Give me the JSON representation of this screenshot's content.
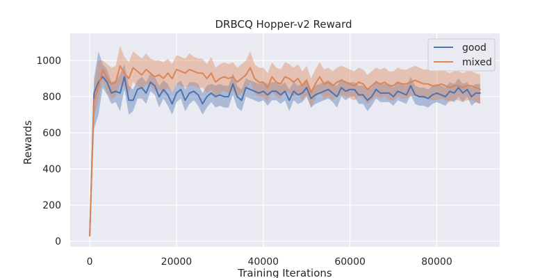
{
  "chart_data": {
    "type": "line",
    "title": "DRBCQ Hopper-v2 Reward",
    "xlabel": "Training Iterations",
    "ylabel": "Rewards",
    "xlim": [
      -4500,
      94500
    ],
    "ylim": [
      -30,
      1150
    ],
    "xticks": [
      0,
      20000,
      40000,
      60000,
      80000
    ],
    "yticks": [
      0,
      200,
      400,
      600,
      800,
      1000
    ],
    "grid": true,
    "legend_position": "top-right",
    "x": [
      0,
      1000,
      2000,
      3000,
      4000,
      5000,
      6000,
      7000,
      8000,
      9000,
      10000,
      11000,
      12000,
      13000,
      14000,
      15000,
      16000,
      17000,
      18000,
      19000,
      20000,
      21000,
      22000,
      23000,
      24000,
      25000,
      26000,
      27000,
      28000,
      29000,
      30000,
      31000,
      32000,
      33000,
      34000,
      35000,
      36000,
      37000,
      38000,
      39000,
      40000,
      41000,
      42000,
      43000,
      44000,
      45000,
      46000,
      47000,
      48000,
      49000,
      50000,
      51000,
      52000,
      53000,
      54000,
      55000,
      56000,
      57000,
      58000,
      59000,
      60000,
      61000,
      62000,
      63000,
      64000,
      65000,
      66000,
      67000,
      68000,
      69000,
      70000,
      71000,
      72000,
      73000,
      74000,
      75000,
      76000,
      77000,
      78000,
      79000,
      80000,
      81000,
      82000,
      83000,
      84000,
      85000,
      86000,
      87000,
      88000,
      89000,
      90000
    ],
    "series": [
      {
        "name": "good",
        "color": "#4c72b0",
        "values": [
          30,
          820,
          880,
          910,
          880,
          820,
          830,
          820,
          910,
          780,
          780,
          840,
          850,
          820,
          880,
          860,
          800,
          840,
          810,
          760,
          820,
          840,
          780,
          820,
          830,
          810,
          760,
          800,
          820,
          800,
          810,
          800,
          800,
          870,
          800,
          780,
          850,
          840,
          830,
          820,
          830,
          810,
          830,
          830,
          810,
          830,
          780,
          830,
          810,
          820,
          850,
          790,
          810,
          820,
          830,
          840,
          820,
          800,
          850,
          830,
          840,
          840,
          810,
          810,
          780,
          800,
          840,
          820,
          820,
          820,
          800,
          830,
          820,
          810,
          860,
          810,
          800,
          800,
          790,
          810,
          820,
          810,
          800,
          830,
          820,
          850,
          820,
          840,
          800,
          820,
          820
        ],
        "upper": [
          40,
          900,
          1050,
          980,
          950,
          880,
          890,
          920,
          980,
          860,
          840,
          890,
          910,
          880,
          930,
          910,
          860,
          890,
          870,
          820,
          870,
          890,
          840,
          880,
          880,
          870,
          820,
          860,
          870,
          860,
          870,
          860,
          860,
          930,
          860,
          840,
          900,
          890,
          880,
          870,
          880,
          870,
          880,
          880,
          860,
          880,
          840,
          880,
          860,
          870,
          900,
          840,
          860,
          870,
          880,
          890,
          870,
          860,
          900,
          880,
          880,
          880,
          860,
          860,
          840,
          850,
          890,
          870,
          870,
          870,
          850,
          880,
          870,
          860,
          910,
          860,
          850,
          850,
          840,
          860,
          870,
          860,
          850,
          880,
          870,
          900,
          870,
          880,
          850,
          870,
          870
        ],
        "lower": [
          20,
          620,
          700,
          850,
          810,
          760,
          770,
          720,
          840,
          700,
          720,
          790,
          790,
          760,
          830,
          810,
          740,
          790,
          750,
          700,
          770,
          790,
          720,
          760,
          780,
          750,
          700,
          740,
          770,
          740,
          750,
          740,
          740,
          810,
          740,
          720,
          800,
          790,
          780,
          770,
          780,
          750,
          780,
          780,
          760,
          780,
          720,
          780,
          760,
          770,
          800,
          740,
          760,
          770,
          780,
          790,
          770,
          740,
          800,
          780,
          800,
          800,
          760,
          760,
          720,
          750,
          790,
          770,
          770,
          770,
          750,
          780,
          770,
          760,
          810,
          760,
          750,
          750,
          740,
          760,
          770,
          760,
          750,
          780,
          770,
          800,
          770,
          800,
          750,
          770,
          760
        ]
      },
      {
        "name": "mixed",
        "color": "#dd8452",
        "values": [
          30,
          780,
          850,
          950,
          900,
          870,
          880,
          970,
          930,
          900,
          960,
          940,
          920,
          950,
          930,
          910,
          920,
          900,
          930,
          900,
          950,
          940,
          930,
          950,
          940,
          930,
          930,
          900,
          930,
          880,
          900,
          910,
          900,
          910,
          880,
          900,
          920,
          960,
          900,
          880,
          880,
          850,
          910,
          880,
          870,
          910,
          900,
          880,
          900,
          860,
          890,
          820,
          870,
          910,
          870,
          880,
          860,
          880,
          890,
          880,
          870,
          860,
          880,
          870,
          840,
          860,
          880,
          870,
          880,
          860,
          860,
          880,
          870,
          870,
          880,
          890,
          880,
          870,
          870,
          860,
          860,
          870,
          860,
          850,
          860,
          860,
          850,
          860,
          860,
          850,
          840
        ],
        "upper": [
          40,
          870,
          1000,
          1000,
          980,
          960,
          970,
          1080,
          1020,
          990,
          1050,
          1030,
          1010,
          1040,
          1010,
          1000,
          1000,
          990,
          1010,
          980,
          1030,
          1020,
          1010,
          1040,
          1020,
          1010,
          1010,
          980,
          1020,
          960,
          980,
          990,
          980,
          990,
          960,
          980,
          1000,
          1050,
          980,
          960,
          960,
          930,
          990,
          960,
          950,
          990,
          980,
          960,
          980,
          940,
          970,
          900,
          950,
          990,
          950,
          960,
          940,
          960,
          970,
          960,
          950,
          940,
          960,
          950,
          920,
          940,
          960,
          950,
          960,
          940,
          940,
          960,
          950,
          950,
          960,
          970,
          960,
          950,
          950,
          940,
          940,
          950,
          940,
          930,
          940,
          940,
          930,
          940,
          940,
          930,
          920
        ],
        "lower": [
          20,
          690,
          780,
          890,
          820,
          790,
          800,
          870,
          850,
          820,
          880,
          860,
          840,
          870,
          860,
          830,
          840,
          820,
          850,
          820,
          870,
          860,
          850,
          860,
          860,
          850,
          850,
          820,
          840,
          800,
          820,
          830,
          820,
          830,
          800,
          820,
          840,
          880,
          820,
          800,
          800,
          770,
          830,
          800,
          790,
          830,
          820,
          800,
          820,
          780,
          810,
          740,
          790,
          830,
          790,
          800,
          780,
          800,
          810,
          800,
          790,
          780,
          800,
          790,
          760,
          780,
          800,
          790,
          800,
          780,
          780,
          800,
          790,
          790,
          800,
          810,
          800,
          790,
          790,
          780,
          780,
          790,
          780,
          770,
          780,
          780,
          770,
          780,
          780,
          770,
          760
        ]
      }
    ]
  }
}
